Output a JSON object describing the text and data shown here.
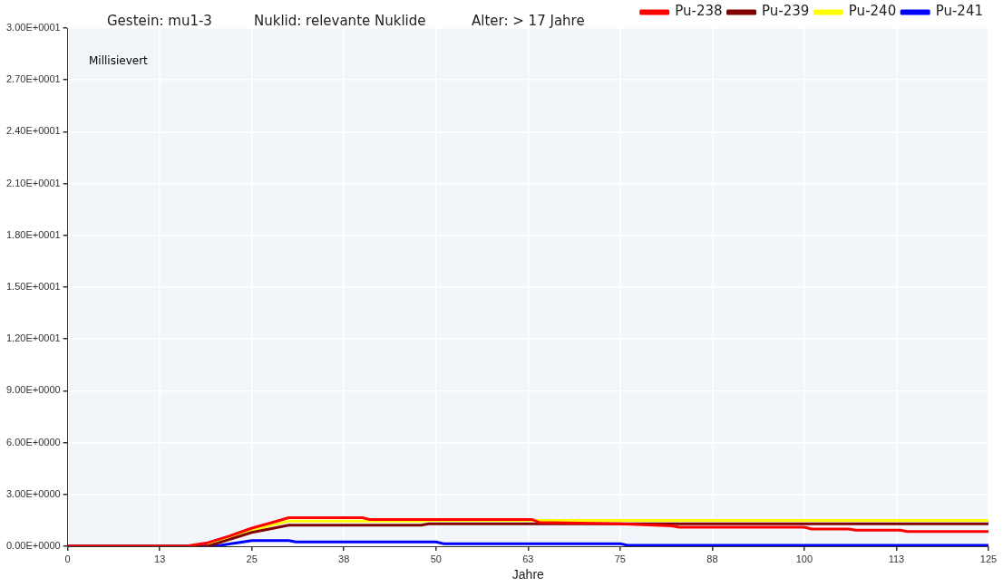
{
  "chart_data": {
    "type": "line",
    "title": "Gestein: mu1-3",
    "subtitle": "Nuklid: relevante Nuklide",
    "annotations": [
      "Alter: > 17 Jahre"
    ],
    "xlabel": "Jahre",
    "ylabel": "Millisievert",
    "xlim": [
      0,
      125
    ],
    "xticks": [
      0,
      {
        "value": 12.5,
        "label": "13"
      },
      25,
      {
        "value": 37.5,
        "label": "38"
      },
      50,
      {
        "value": 62.5,
        "label": "63"
      },
      75,
      {
        "value": 87.5,
        "label": "88"
      },
      100,
      {
        "value": 112.5,
        "label": "113"
      },
      125
    ],
    "ylim": [
      0,
      30
    ],
    "yticks": [
      {
        "value": 0,
        "label": "0.00E+0000"
      },
      {
        "value": 3,
        "label": "3.00E+0000"
      },
      {
        "value": 6,
        "label": "6.00E+0000"
      },
      {
        "value": 9,
        "label": "9.00E+0000"
      },
      {
        "value": 12,
        "label": "1.20E+0001"
      },
      {
        "value": 15,
        "label": "1.50E+0001"
      },
      {
        "value": 18,
        "label": "1.80E+0001"
      },
      {
        "value": 21,
        "label": "2.10E+0001"
      },
      {
        "value": 24,
        "label": "2.40E+0001"
      },
      {
        "value": 27,
        "label": "2.70E+0001"
      },
      {
        "value": 30,
        "label": "3.00E+0001"
      }
    ],
    "grid": true,
    "legend": "top right",
    "marker": "none",
    "line_style": "solid",
    "series": [
      {
        "name": "Pu-238",
        "color": "#ff0000",
        "x": [
          0,
          16,
          19,
          22,
          25,
          28,
          30,
          40,
          41,
          63,
          64,
          75,
          82,
          83,
          100,
          101,
          106,
          107,
          113,
          114,
          125
        ],
        "values": [
          0,
          0,
          0.2,
          0.6,
          1.05,
          1.4,
          1.65,
          1.65,
          1.55,
          1.55,
          1.38,
          1.3,
          1.18,
          1.1,
          1.1,
          1.0,
          1.0,
          0.93,
          0.93,
          0.85,
          0.85
        ]
      },
      {
        "name": "Pu-239",
        "color": "#800000",
        "x": [
          0,
          19,
          22,
          25,
          28,
          30,
          48,
          49,
          125
        ],
        "values": [
          0,
          0,
          0.4,
          0.8,
          1.05,
          1.22,
          1.22,
          1.3,
          1.3
        ]
      },
      {
        "name": "Pu-240",
        "color": "#ffff00",
        "x": [
          19,
          21,
          24,
          27,
          30,
          48,
          49,
          125
        ],
        "values": [
          0.15,
          0.35,
          0.75,
          1.15,
          1.45,
          1.45,
          1.5,
          1.5
        ]
      },
      {
        "name": "Pu-241",
        "color": "#0000ff",
        "x": [
          0,
          20,
          23,
          25,
          30,
          31,
          50,
          51,
          75,
          76,
          125
        ],
        "values": [
          0,
          0,
          0.2,
          0.33,
          0.33,
          0.25,
          0.25,
          0.15,
          0.15,
          0.05,
          0.05
        ]
      }
    ]
  }
}
